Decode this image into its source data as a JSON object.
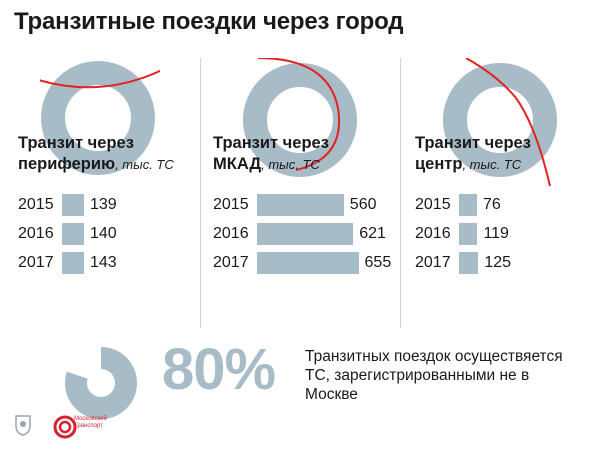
{
  "title": "Транзитные поездки через город",
  "colors": {
    "bar": "#a8bcc8",
    "route": "#e32222",
    "text": "#1a1a1a",
    "brand": "#d4232f"
  },
  "chart_data": [
    {
      "type": "bar",
      "title_main": "Транзит через",
      "title_sub": "периферию",
      "unit": ", тыс. ТС",
      "categories": [
        "2015",
        "2016",
        "2017"
      ],
      "values": [
        139,
        140,
        143
      ]
    },
    {
      "type": "bar",
      "title_main": "Транзит через",
      "title_sub": "МКАД",
      "unit": ", тыс. ТС",
      "categories": [
        "2015",
        "2016",
        "2017"
      ],
      "values": [
        560,
        621,
        655
      ]
    },
    {
      "type": "bar",
      "title_main": "Транзит через",
      "title_sub": "центр",
      "unit": ", тыс. ТС",
      "categories": [
        "2015",
        "2016",
        "2017"
      ],
      "values": [
        76,
        119,
        125
      ]
    }
  ],
  "summary": {
    "percent_value": 80,
    "percent_label": "80%",
    "note": "Транзитных поездок осуществяется ТС, зарегистрированными не в Москве"
  },
  "footer": {
    "brand_label_1": "Московский",
    "brand_label_2": "Транспорт"
  }
}
